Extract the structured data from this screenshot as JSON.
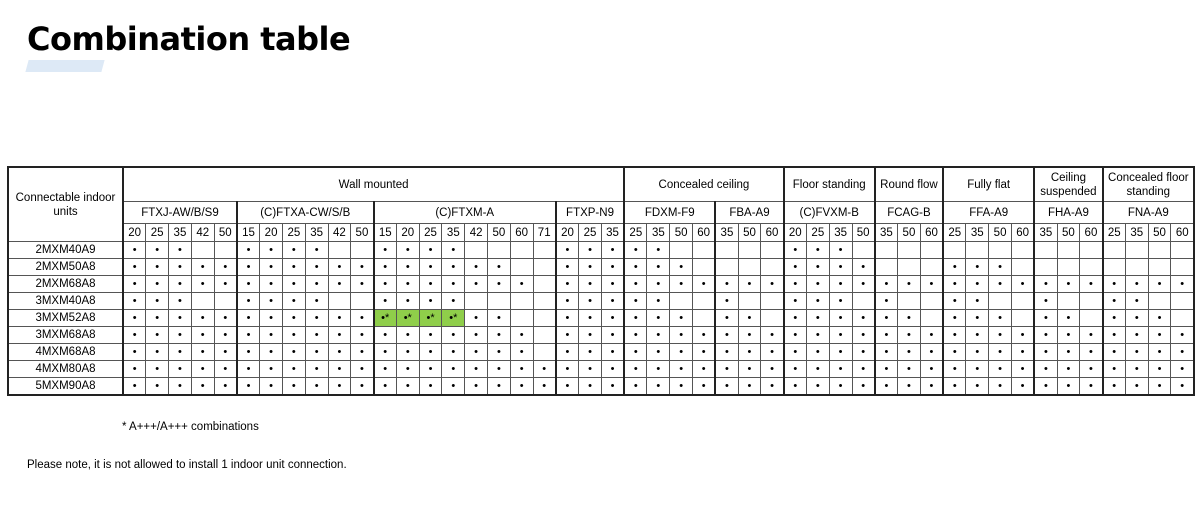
{
  "title": "Combination table",
  "table": {
    "row_header": "Connectable indoor units",
    "categories": [
      {
        "label": "Wall mounted",
        "span": 22
      },
      {
        "label": "Concealed ceiling",
        "span": 7
      },
      {
        "label": "Floor standing",
        "span": 4
      },
      {
        "label": "Round flow",
        "span": 3
      },
      {
        "label": "Fully flat",
        "span": 4
      },
      {
        "label": "Ceiling suspended",
        "span": 3
      },
      {
        "label": "Concealed floor standing",
        "span": 4
      }
    ],
    "models": [
      {
        "label": "FTXJ-AW/B/S9",
        "sizes": [
          "20",
          "25",
          "35",
          "42",
          "50"
        ]
      },
      {
        "label": "(C)FTXA-CW/S/B",
        "sizes": [
          "15",
          "20",
          "25",
          "35",
          "42",
          "50"
        ]
      },
      {
        "label": "(C)FTXM-A",
        "sizes": [
          "15",
          "20",
          "25",
          "35",
          "42",
          "50",
          "60",
          "71"
        ]
      },
      {
        "label": "FTXP-N9",
        "sizes": [
          "20",
          "25",
          "35"
        ]
      },
      {
        "label": "FDXM-F9",
        "sizes": [
          "25",
          "35",
          "50",
          "60"
        ]
      },
      {
        "label": "FBA-A9",
        "sizes": [
          "35",
          "50",
          "60"
        ]
      },
      {
        "label": "(C)FVXM-B",
        "sizes": [
          "20",
          "25",
          "35",
          "50"
        ]
      },
      {
        "label": "FCAG-B",
        "sizes": [
          "35",
          "50",
          "60"
        ]
      },
      {
        "label": "FFA-A9",
        "sizes": [
          "25",
          "35",
          "50",
          "60"
        ]
      },
      {
        "label": "FHA-A9",
        "sizes": [
          "35",
          "50",
          "60"
        ]
      },
      {
        "label": "FNA-A9",
        "sizes": [
          "25",
          "35",
          "50",
          "60"
        ]
      }
    ],
    "highlight_color": "#8fce4a",
    "rows": [
      {
        "unit": "2MXM40A9",
        "cells": [
          "•",
          "•",
          "•",
          "",
          "",
          "•",
          "•",
          "•",
          "•",
          "",
          "",
          "•",
          "•",
          "•",
          "•",
          "",
          "",
          "",
          "",
          "•",
          "•",
          "•",
          "•",
          "•",
          "",
          "",
          "",
          "",
          "",
          "•",
          "•",
          "•",
          "",
          "",
          "",
          "",
          "",
          "",
          "",
          "",
          "",
          "",
          "",
          "",
          "",
          "",
          ""
        ]
      },
      {
        "unit": "2MXM50A8",
        "cells": [
          "•",
          "•",
          "•",
          "•",
          "•",
          "•",
          "•",
          "•",
          "•",
          "•",
          "•",
          "•",
          "•",
          "•",
          "•",
          "•",
          "•",
          "",
          "",
          "•",
          "•",
          "•",
          "•",
          "•",
          "•",
          "",
          "",
          "",
          "",
          "•",
          "•",
          "•",
          "•",
          "",
          "",
          "",
          "•",
          "•",
          "•",
          "",
          "",
          "",
          "",
          "",
          "",
          "",
          ""
        ]
      },
      {
        "unit": "2MXM68A8",
        "cells": [
          "•",
          "•",
          "•",
          "•",
          "•",
          "•",
          "•",
          "•",
          "•",
          "•",
          "•",
          "•",
          "•",
          "•",
          "•",
          "•",
          "•",
          "•",
          "",
          "•",
          "•",
          "•",
          "•",
          "•",
          "•",
          "•",
          "•",
          "•",
          "•",
          "•",
          "•",
          "•",
          "•",
          "•",
          "•",
          "•",
          "•",
          "•",
          "•",
          "•",
          "•",
          "•",
          "•",
          "•",
          "•",
          "•",
          "•"
        ]
      },
      {
        "unit": "3MXM40A8",
        "cells": [
          "•",
          "•",
          "•",
          "",
          "",
          "•",
          "•",
          "•",
          "•",
          "",
          "",
          "•",
          "•",
          "•",
          "•",
          "",
          "",
          "",
          "",
          "•",
          "•",
          "•",
          "•",
          "•",
          "",
          "",
          "•",
          "",
          "",
          "•",
          "•",
          "•",
          "",
          "•",
          "",
          "",
          "•",
          "•",
          "",
          "",
          "•",
          "",
          "",
          "•",
          "•",
          "",
          ""
        ]
      },
      {
        "unit": "3MXM52A8",
        "cells": [
          "•",
          "•",
          "•",
          "•",
          "•",
          "•",
          "•",
          "•",
          "•",
          "•",
          "•",
          "•*",
          "•*",
          "•*",
          "•*",
          "•",
          "•",
          "",
          "",
          "•",
          "•",
          "•",
          "•",
          "•",
          "•",
          "",
          "•",
          "•",
          "",
          "•",
          "•",
          "•",
          "•",
          "•",
          "•",
          "",
          "•",
          "•",
          "•",
          "",
          "•",
          "•",
          "",
          "•",
          "•",
          "•",
          ""
        ]
      },
      {
        "unit": "3MXM68A8",
        "cells": [
          "•",
          "•",
          "•",
          "•",
          "•",
          "•",
          "•",
          "•",
          "•",
          "•",
          "•",
          "•",
          "•",
          "•",
          "•",
          "•",
          "•",
          "•",
          "",
          "•",
          "•",
          "•",
          "•",
          "•",
          "•",
          "•",
          "•",
          "•",
          "•",
          "•",
          "•",
          "•",
          "•",
          "•",
          "•",
          "•",
          "•",
          "•",
          "•",
          "•",
          "•",
          "•",
          "•",
          "•",
          "•",
          "•",
          "•"
        ]
      },
      {
        "unit": "4MXM68A8",
        "cells": [
          "•",
          "•",
          "•",
          "•",
          "•",
          "•",
          "•",
          "•",
          "•",
          "•",
          "•",
          "•",
          "•",
          "•",
          "•",
          "•",
          "•",
          "•",
          "",
          "•",
          "•",
          "•",
          "•",
          "•",
          "•",
          "•",
          "•",
          "•",
          "•",
          "•",
          "•",
          "•",
          "•",
          "•",
          "•",
          "•",
          "•",
          "•",
          "•",
          "•",
          "•",
          "•",
          "•",
          "•",
          "•",
          "•",
          "•"
        ]
      },
      {
        "unit": "4MXM80A8",
        "cells": [
          "•",
          "•",
          "•",
          "•",
          "•",
          "•",
          "•",
          "•",
          "•",
          "•",
          "•",
          "•",
          "•",
          "•",
          "•",
          "•",
          "•",
          "•",
          "•",
          "•",
          "•",
          "•",
          "•",
          "•",
          "•",
          "•",
          "•",
          "•",
          "•",
          "•",
          "•",
          "•",
          "•",
          "•",
          "•",
          "•",
          "•",
          "•",
          "•",
          "•",
          "•",
          "•",
          "•",
          "•",
          "•",
          "•",
          "•"
        ]
      },
      {
        "unit": "5MXM90A8",
        "cells": [
          "•",
          "•",
          "•",
          "•",
          "•",
          "•",
          "•",
          "•",
          "•",
          "•",
          "•",
          "•",
          "•",
          "•",
          "•",
          "•",
          "•",
          "•",
          "•",
          "•",
          "•",
          "•",
          "•",
          "•",
          "•",
          "•",
          "•",
          "•",
          "•",
          "•",
          "•",
          "•",
          "•",
          "•",
          "•",
          "•",
          "•",
          "•",
          "•",
          "•",
          "•",
          "•",
          "•",
          "•",
          "•",
          "•",
          "•"
        ]
      }
    ]
  },
  "footnote": "* A+++/A+++ combinations",
  "note": "Please note, it is not allowed to install 1 indoor unit connection."
}
